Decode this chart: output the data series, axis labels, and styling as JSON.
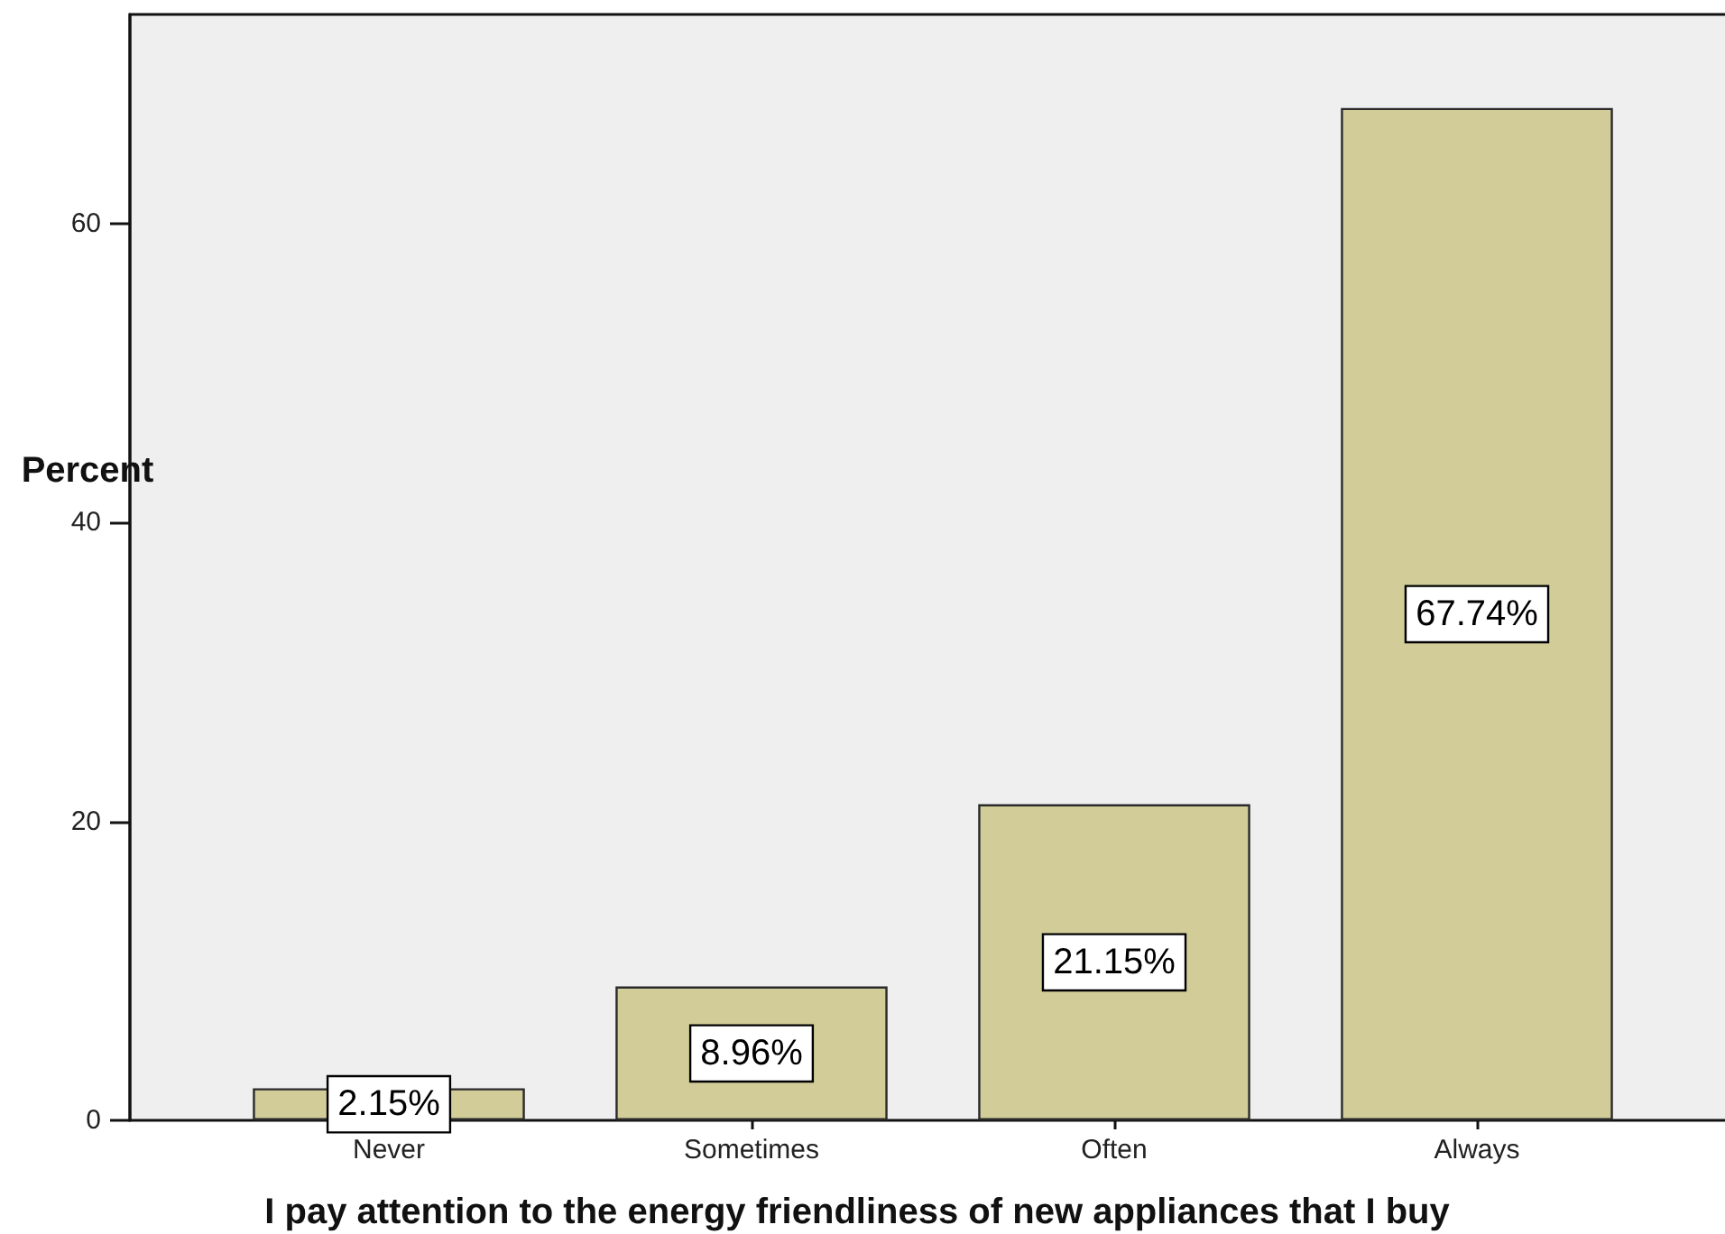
{
  "chart_data": {
    "type": "bar",
    "xlabel": "I pay attention to the energy friendliness of new appliances that I buy",
    "ylabel": "Percent",
    "categories": [
      "Never",
      "Sometimes",
      "Often",
      "Always"
    ],
    "values": [
      2.15,
      8.96,
      21.15,
      67.74
    ],
    "value_labels": [
      "2.15%",
      "8.96%",
      "21.15%",
      "67.74%"
    ],
    "color": "#d2cd98",
    "ylim": [
      0,
      74
    ],
    "yticks": [
      0,
      20,
      40,
      60
    ]
  }
}
